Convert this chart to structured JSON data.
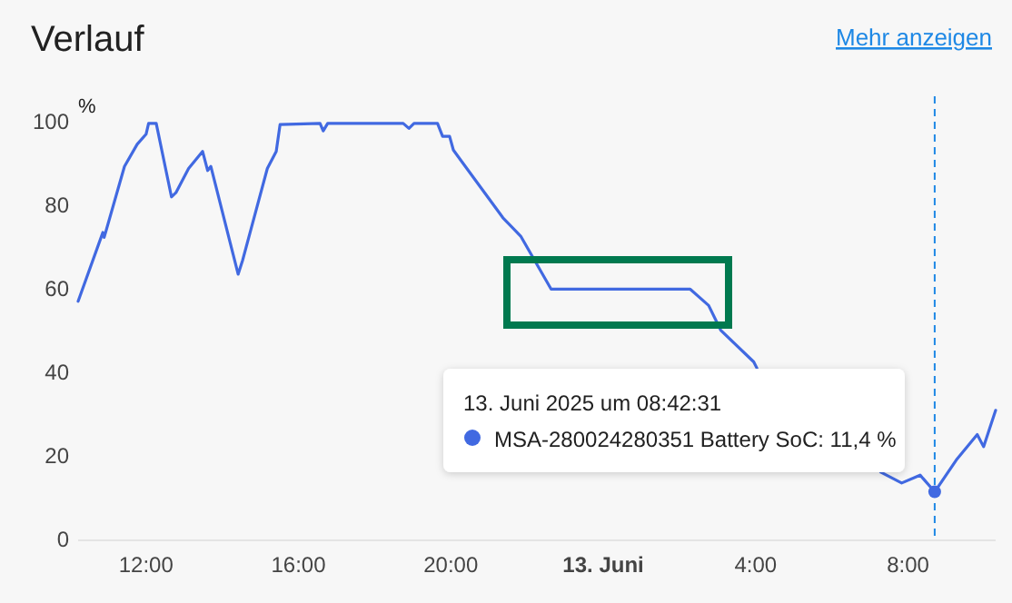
{
  "chart_data": {
    "type": "line",
    "title": "Verlauf",
    "ylabel": "%",
    "x": [
      "2025-06-12T10:13",
      "2025-06-12T10:52",
      "2025-06-12T10:54",
      "2025-06-12T11:26",
      "2025-06-12T11:46",
      "2025-06-12T12:00",
      "2025-06-12T12:04",
      "2025-06-12T12:16",
      "2025-06-12T12:40",
      "2025-06-12T12:47",
      "2025-06-12T13:07",
      "2025-06-12T13:29",
      "2025-06-12T13:37",
      "2025-06-12T13:42",
      "2025-06-12T14:25",
      "2025-06-12T14:32",
      "2025-06-12T15:11",
      "2025-06-12T15:25",
      "2025-06-12T15:31",
      "2025-06-12T16:34",
      "2025-06-12T16:39",
      "2025-06-12T16:46",
      "2025-06-12T18:45",
      "2025-06-12T18:54",
      "2025-06-12T19:02",
      "2025-06-12T19:39",
      "2025-06-12T19:47",
      "2025-06-12T19:58",
      "2025-06-12T20:04",
      "2025-06-12T20:44",
      "2025-06-12T21:22",
      "2025-06-12T21:50",
      "2025-06-12T22:38",
      "2025-06-13T02:17",
      "2025-06-13T02:46",
      "2025-06-13T03:05",
      "2025-06-13T03:57",
      "2025-06-13T04:02",
      "2025-06-13T05:36",
      "2025-06-13T07:17",
      "2025-06-13T07:50",
      "2025-06-13T08:19",
      "2025-06-13T08:42",
      "2025-06-13T09:16",
      "2025-06-13T09:49",
      "2025-06-13T09:59",
      "2025-06-13T10:18"
    ],
    "series": [
      {
        "color": "#4169e1",
        "values": [
          57,
          73.5,
          72.3,
          89.3,
          94.6,
          97,
          99.6,
          99.6,
          82,
          83,
          88.8,
          92.9,
          88.3,
          89.3,
          63.5,
          66.8,
          88.8,
          92.9,
          99.3,
          99.6,
          97.8,
          99.6,
          99.6,
          98.4,
          99.6,
          99.6,
          96.5,
          96.5,
          93.2,
          84.9,
          77,
          72.6,
          59.9,
          59.9,
          56,
          50.1,
          42.5,
          41,
          null,
          16.1,
          13.5,
          15.4,
          11.4,
          19,
          25.1,
          22.2,
          30.9
        ]
      }
    ],
    "xlim": [
      "2025-06-12T10:13",
      "2025-06-13T10:18"
    ],
    "ylim": [
      0,
      100
    ],
    "xticks": [
      {
        "value": "2025-06-12T12:00",
        "label": "12:00"
      },
      {
        "value": "2025-06-12T16:00",
        "label": "16:00"
      },
      {
        "value": "2025-06-12T20:00",
        "label": "20:00"
      },
      {
        "value": "2025-06-13T00:00",
        "label": "13. Juni"
      },
      {
        "value": "2025-06-13T04:00",
        "label": "4:00"
      },
      {
        "value": "2025-06-13T08:00",
        "label": "8:00"
      }
    ],
    "yticks": [
      0,
      20,
      40,
      60,
      80,
      100
    ],
    "marker": "none",
    "line_style": "solid",
    "ref_lines": [
      {
        "axis": "x",
        "value": "2025-06-13T08:42",
        "color": "#1e88e5",
        "line_style": "dashed"
      }
    ],
    "annotations": [
      "Mehr anzeigen",
      "13. Juni 2025 um 08:42:31",
      "MSA-280024280351 Battery SoC: 11,4 %"
    ]
  }
}
